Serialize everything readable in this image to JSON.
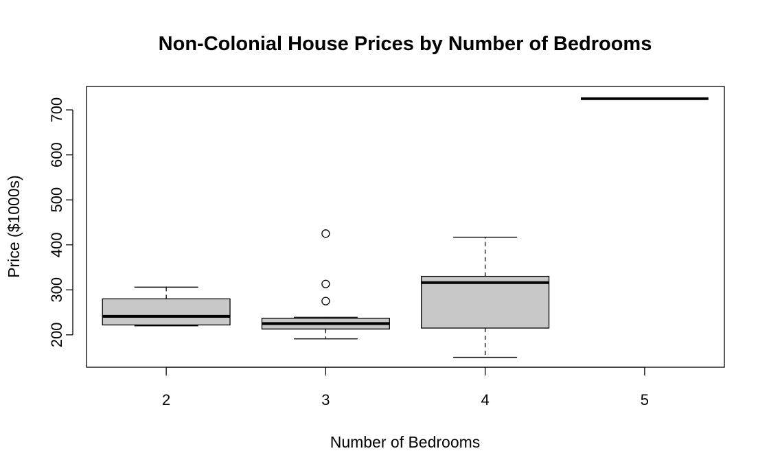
{
  "chart_data": {
    "type": "boxplot",
    "title": "Non-Colonial House Prices by Number of Bedrooms",
    "xlabel": "Number of Bedrooms",
    "ylabel": "Price ($1000s)",
    "categories": [
      "2",
      "3",
      "4",
      "5"
    ],
    "ylim": [
      128,
      752
    ],
    "yticks": [
      200,
      300,
      400,
      500,
      600,
      700
    ],
    "box_fill": "#c8c8c8",
    "boxes": [
      {
        "category": "2",
        "whisker_low": 220,
        "q1": 222,
        "median": 241,
        "q3": 280,
        "whisker_high": 306,
        "outliers": []
      },
      {
        "category": "3",
        "whisker_low": 191,
        "q1": 213,
        "median": 225,
        "q3": 237,
        "whisker_high": 239,
        "outliers": [
          275,
          313,
          425
        ]
      },
      {
        "category": "4",
        "whisker_low": 150,
        "q1": 215,
        "median": 316,
        "q3": 330,
        "whisker_high": 417,
        "outliers": []
      },
      {
        "category": "5",
        "whisker_low": 725,
        "q1": 725,
        "median": 725,
        "q3": 725,
        "whisker_high": 725,
        "outliers": []
      }
    ]
  }
}
